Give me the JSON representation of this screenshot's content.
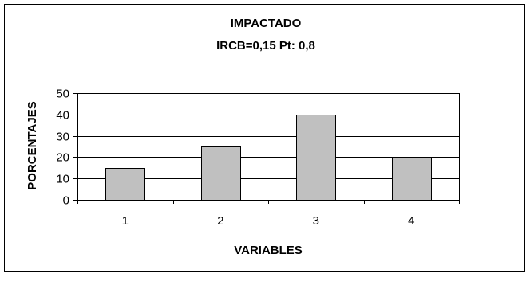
{
  "chart_data": {
    "type": "bar",
    "title": "IMPACTADO",
    "subtitle": "IRCB=0,15 Pt: 0,8",
    "xlabel": "VARIABLES",
    "ylabel": "PORCENTAJES",
    "categories": [
      "1",
      "2",
      "3",
      "4"
    ],
    "values": [
      15,
      25,
      40,
      20
    ],
    "ylim": [
      0,
      50
    ],
    "yticks": [
      0,
      10,
      20,
      30,
      40,
      50
    ],
    "grid": true,
    "legend": "none",
    "colors": {
      "bar_fill": "#c0c0c0",
      "bar_stroke": "#000000",
      "grid": "#000000",
      "frame": "#000000"
    }
  }
}
